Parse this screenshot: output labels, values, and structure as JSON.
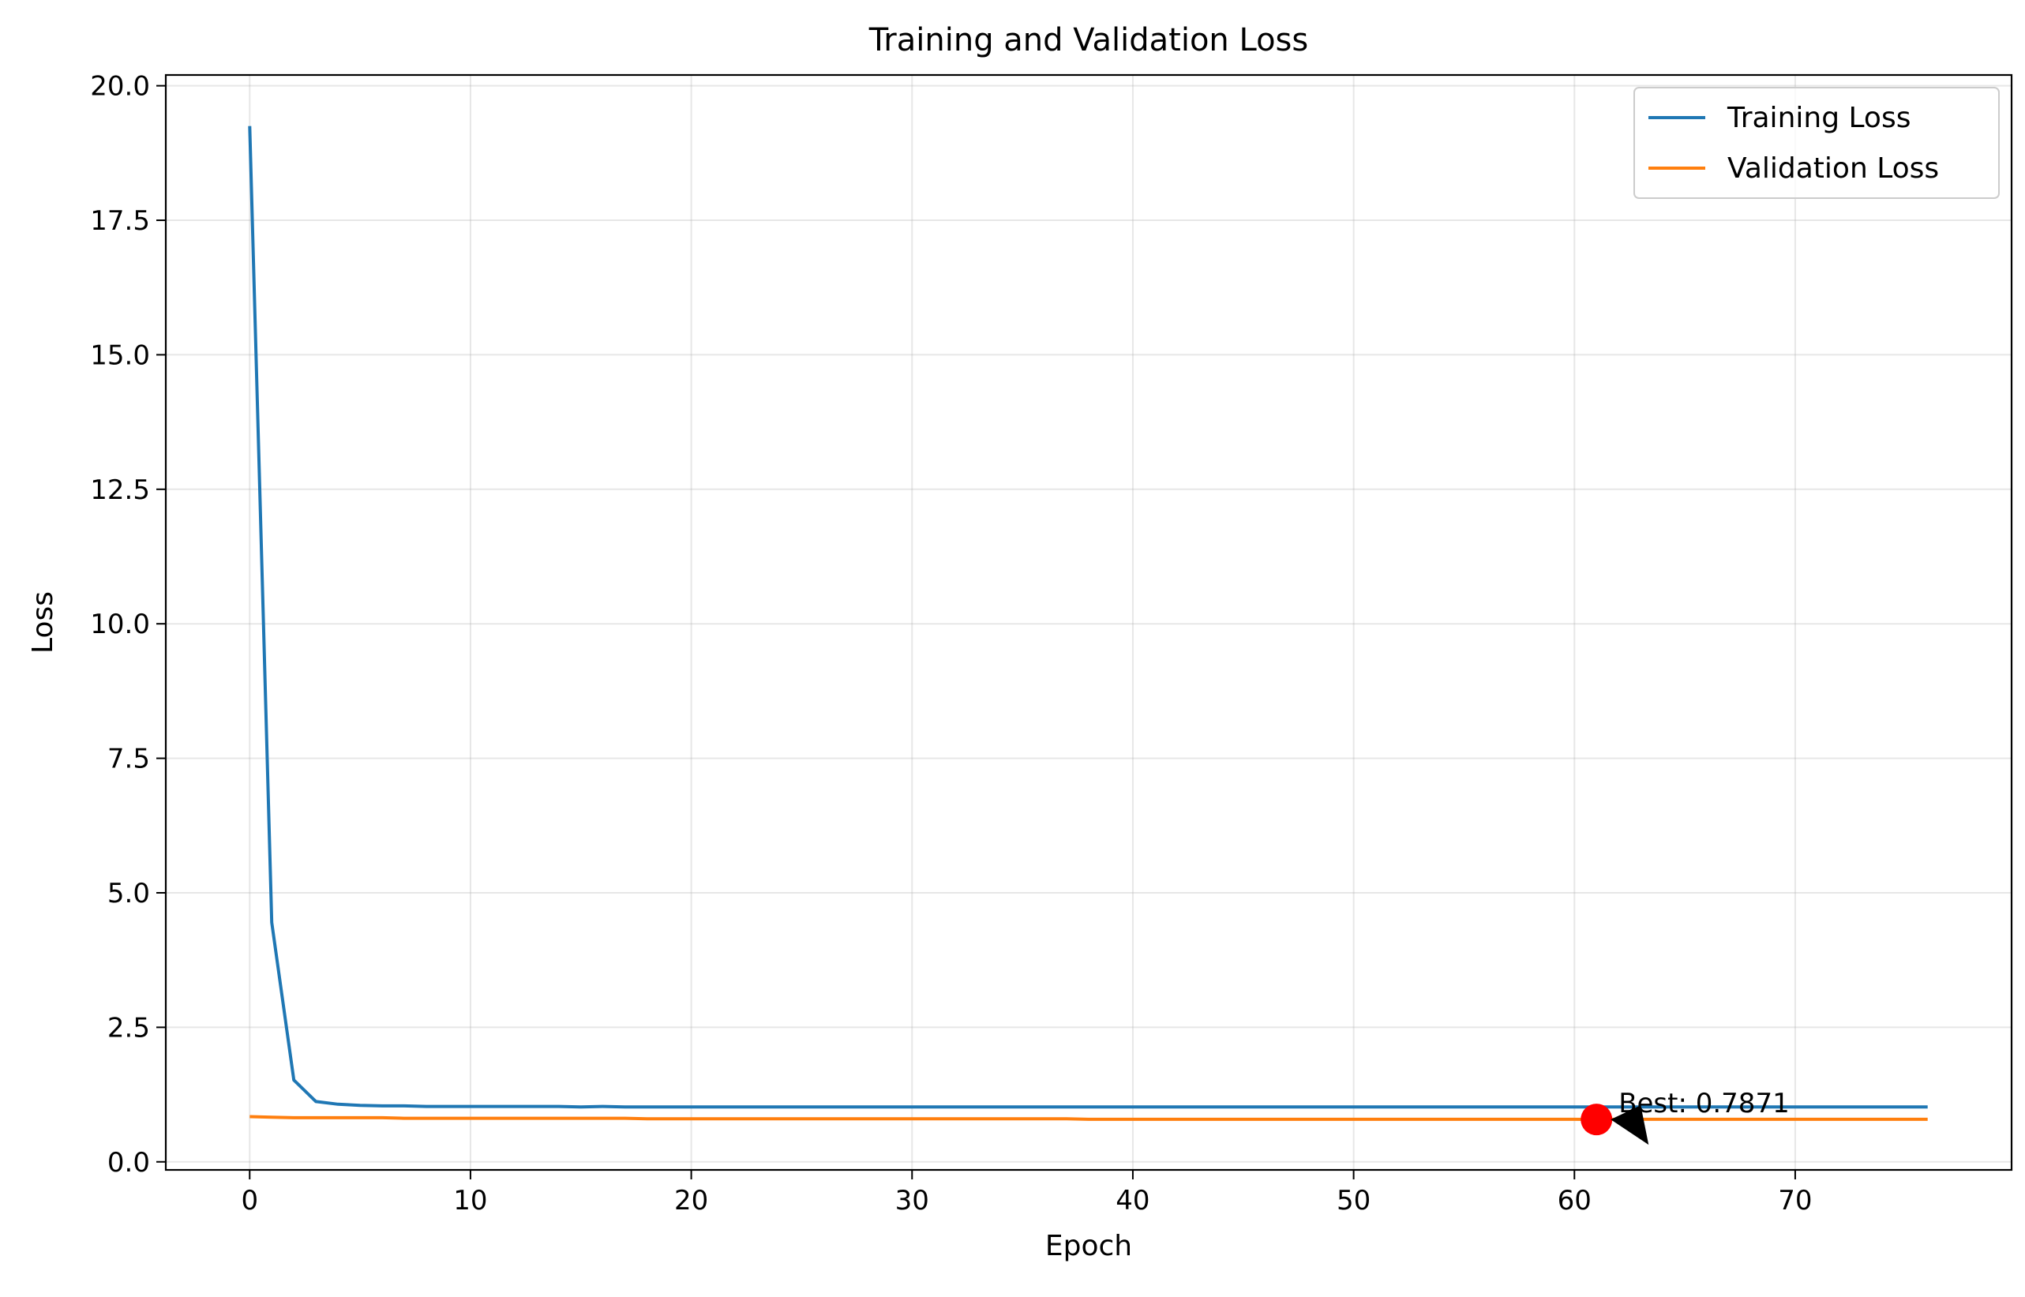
{
  "chart_data": {
    "type": "line",
    "title": "Training and Validation Loss",
    "xlabel": "Epoch",
    "ylabel": "Loss",
    "xlim": [
      -3.8,
      79.8
    ],
    "ylim": [
      -0.15,
      20.2
    ],
    "xticks": [
      0,
      10,
      20,
      30,
      40,
      50,
      60,
      70
    ],
    "xtick_labels": [
      "0",
      "10",
      "20",
      "30",
      "40",
      "50",
      "60",
      "70"
    ],
    "yticks": [
      0.0,
      2.5,
      5.0,
      7.5,
      10.0,
      12.5,
      15.0,
      17.5,
      20.0
    ],
    "ytick_labels": [
      "0.0",
      "2.5",
      "5.0",
      "7.5",
      "10.0",
      "12.5",
      "15.0",
      "17.5",
      "20.0"
    ],
    "grid": true,
    "legend_position": "top-right",
    "series": [
      {
        "name": "Training Loss",
        "color": "#1f77b4",
        "x": [
          0,
          1,
          2,
          3,
          4,
          5,
          6,
          7,
          8,
          9,
          10,
          11,
          12,
          13,
          14,
          15,
          16,
          17,
          18,
          19,
          20,
          21,
          22,
          23,
          24,
          25,
          26,
          27,
          28,
          29,
          30,
          31,
          32,
          33,
          34,
          35,
          36,
          37,
          38,
          39,
          40,
          41,
          42,
          43,
          44,
          45,
          46,
          47,
          48,
          49,
          50,
          51,
          52,
          53,
          54,
          55,
          56,
          57,
          58,
          59,
          60,
          61,
          62,
          63,
          64,
          65,
          66,
          67,
          68,
          69,
          70,
          71,
          72,
          73,
          74,
          75,
          76
        ],
        "values": [
          19.25,
          4.45,
          1.52,
          1.12,
          1.07,
          1.05,
          1.04,
          1.04,
          1.03,
          1.03,
          1.03,
          1.03,
          1.03,
          1.03,
          1.03,
          1.02,
          1.03,
          1.02,
          1.02,
          1.02,
          1.02,
          1.02,
          1.02,
          1.02,
          1.02,
          1.02,
          1.02,
          1.02,
          1.02,
          1.02,
          1.02,
          1.02,
          1.02,
          1.02,
          1.02,
          1.02,
          1.02,
          1.02,
          1.02,
          1.02,
          1.02,
          1.02,
          1.02,
          1.02,
          1.02,
          1.02,
          1.02,
          1.02,
          1.02,
          1.02,
          1.02,
          1.02,
          1.02,
          1.02,
          1.02,
          1.02,
          1.02,
          1.02,
          1.02,
          1.02,
          1.02,
          1.02,
          1.02,
          1.02,
          1.02,
          1.02,
          1.02,
          1.02,
          1.02,
          1.02,
          1.02,
          1.02,
          1.02,
          1.02,
          1.02,
          1.02,
          1.02
        ]
      },
      {
        "name": "Validation Loss",
        "color": "#ff7f0e",
        "x": [
          0,
          1,
          2,
          3,
          4,
          5,
          6,
          7,
          8,
          9,
          10,
          11,
          12,
          13,
          14,
          15,
          16,
          17,
          18,
          19,
          20,
          21,
          22,
          23,
          24,
          25,
          26,
          27,
          28,
          29,
          30,
          31,
          32,
          33,
          34,
          35,
          36,
          37,
          38,
          39,
          40,
          41,
          42,
          43,
          44,
          45,
          46,
          47,
          48,
          49,
          50,
          51,
          52,
          53,
          54,
          55,
          56,
          57,
          58,
          59,
          60,
          61,
          62,
          63,
          64,
          65,
          66,
          67,
          68,
          69,
          70,
          71,
          72,
          73,
          74,
          75,
          76
        ],
        "values": [
          0.84,
          0.83,
          0.82,
          0.82,
          0.82,
          0.82,
          0.82,
          0.81,
          0.81,
          0.81,
          0.81,
          0.81,
          0.81,
          0.81,
          0.81,
          0.81,
          0.81,
          0.81,
          0.8,
          0.8,
          0.8,
          0.8,
          0.8,
          0.8,
          0.8,
          0.8,
          0.8,
          0.8,
          0.8,
          0.8,
          0.8,
          0.8,
          0.8,
          0.8,
          0.8,
          0.8,
          0.8,
          0.8,
          0.79,
          0.79,
          0.79,
          0.79,
          0.79,
          0.79,
          0.79,
          0.79,
          0.79,
          0.79,
          0.79,
          0.79,
          0.79,
          0.79,
          0.79,
          0.79,
          0.79,
          0.79,
          0.79,
          0.79,
          0.79,
          0.79,
          0.79,
          0.7871,
          0.79,
          0.79,
          0.79,
          0.79,
          0.79,
          0.79,
          0.79,
          0.79,
          0.79,
          0.79,
          0.79,
          0.79,
          0.79,
          0.79,
          0.79
        ]
      }
    ],
    "annotation": {
      "text": "Best: 0.7871",
      "point": [
        61,
        0.7871
      ],
      "text_position": [
        62,
        1.1
      ],
      "marker_color": "#ff0000",
      "arrow_color": "#000000"
    }
  }
}
